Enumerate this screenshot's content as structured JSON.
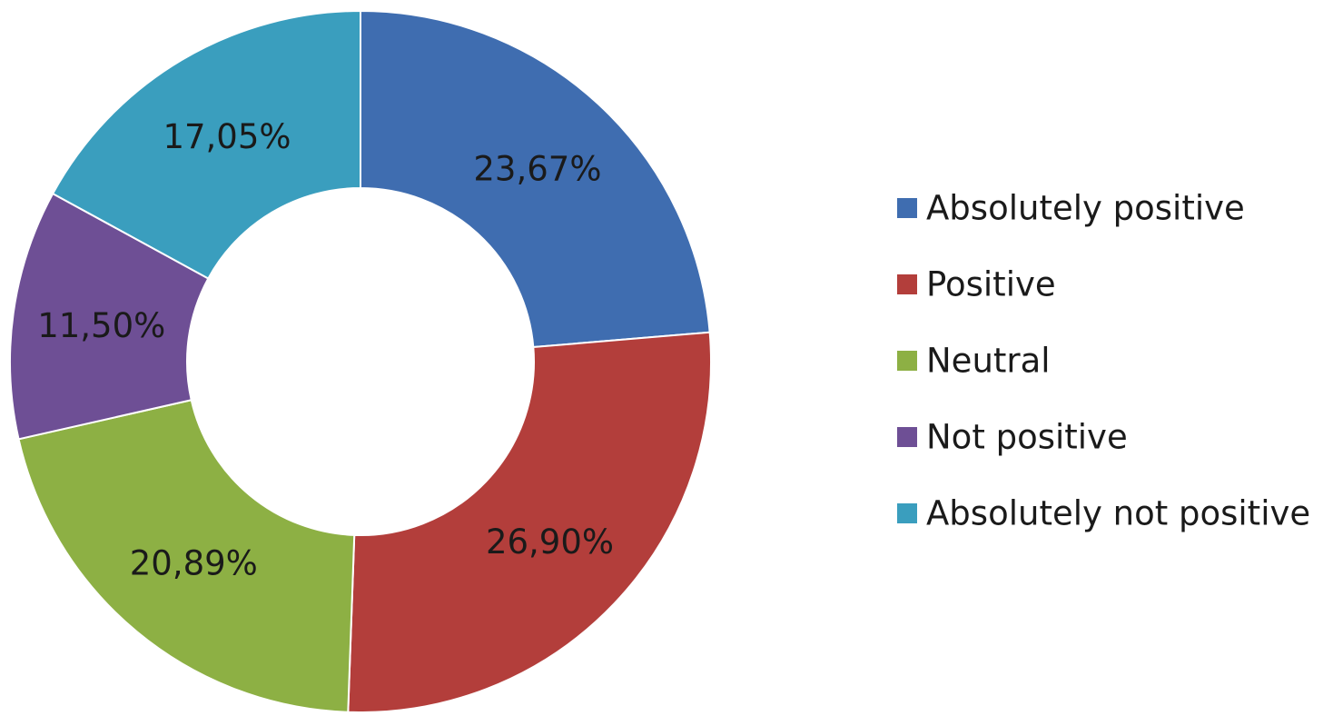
{
  "chart_data": {
    "type": "pie",
    "variant": "donut",
    "title": "",
    "legend_position": "right",
    "categories": [
      "Absolutely positive",
      "Positive",
      "Neutral",
      "Not positive",
      "Absolutely not positive"
    ],
    "values": [
      23.67,
      26.9,
      20.89,
      11.5,
      17.05
    ],
    "value_labels": [
      "23,67%",
      "26,90%",
      "20,89%",
      "11,50%",
      "17,05%"
    ],
    "colors": [
      "#3F6DB0",
      "#B33E3B",
      "#8DB044",
      "#6E4F95",
      "#3A9EBE"
    ]
  }
}
